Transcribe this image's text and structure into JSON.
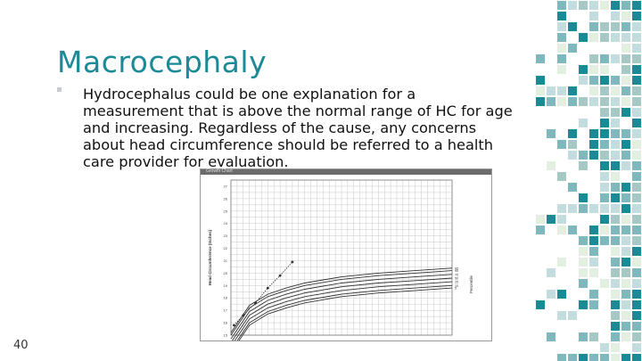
{
  "slide": {
    "title": "Macrocephaly",
    "body": "Hydrocephalus could be one explanation for a measurement that is above the normal range of HC for age and increasing. Regardless of the cause, any concerns about head circumference should be referred to a health care provider for evaluation.",
    "page_number": "40"
  },
  "chart_data": {
    "type": "line",
    "title": "",
    "window_title": "Growth Chart",
    "ylabel": "Head Circumference (Inches)",
    "right_label": "Percentile",
    "yticks": [
      "15",
      "16",
      "17",
      "18",
      "19",
      "20",
      "21",
      "22",
      "23",
      "24",
      "25",
      "26",
      "27"
    ],
    "ylim": [
      15,
      27.5
    ],
    "xlim": [
      0,
      36
    ],
    "percentile_labels": [
      "95",
      "90",
      "75",
      "50",
      "25",
      "10",
      "5"
    ],
    "series": [
      {
        "name": "95",
        "x": [
          0,
          3,
          6,
          9,
          12,
          18,
          24,
          30,
          36
        ],
        "y": [
          15.2,
          17.4,
          18.3,
          18.8,
          19.2,
          19.7,
          20.0,
          20.2,
          20.4
        ]
      },
      {
        "name": "90",
        "x": [
          0,
          3,
          6,
          9,
          12,
          18,
          24,
          30,
          36
        ],
        "y": [
          15.0,
          17.2,
          18.1,
          18.6,
          19.0,
          19.5,
          19.8,
          20.0,
          20.2
        ]
      },
      {
        "name": "75",
        "x": [
          0,
          3,
          6,
          9,
          12,
          18,
          24,
          30,
          36
        ],
        "y": [
          14.7,
          16.9,
          17.8,
          18.3,
          18.7,
          19.2,
          19.5,
          19.7,
          19.9
        ]
      },
      {
        "name": "50",
        "x": [
          0,
          3,
          6,
          9,
          12,
          18,
          24,
          30,
          36
        ],
        "y": [
          14.4,
          16.6,
          17.5,
          18.0,
          18.4,
          18.9,
          19.2,
          19.4,
          19.6
        ]
      },
      {
        "name": "25",
        "x": [
          0,
          3,
          6,
          9,
          12,
          18,
          24,
          30,
          36
        ],
        "y": [
          14.1,
          16.3,
          17.2,
          17.7,
          18.1,
          18.6,
          18.9,
          19.1,
          19.3
        ]
      },
      {
        "name": "10",
        "x": [
          0,
          3,
          6,
          9,
          12,
          18,
          24,
          30,
          36
        ],
        "y": [
          13.8,
          16.0,
          16.9,
          17.4,
          17.8,
          18.3,
          18.6,
          18.8,
          19.0
        ]
      },
      {
        "name": "5",
        "x": [
          0,
          3,
          6,
          9,
          12,
          18,
          24,
          30,
          36
        ],
        "y": [
          13.6,
          15.8,
          16.7,
          17.2,
          17.6,
          18.1,
          18.4,
          18.6,
          18.8
        ]
      }
    ],
    "patient": {
      "x": [
        0.5,
        2,
        4,
        6,
        8,
        10
      ],
      "y": [
        15.8,
        16.6,
        17.6,
        18.8,
        19.8,
        20.9
      ]
    },
    "colors": {
      "curve": "#333333",
      "patient": "#333333",
      "grid": "#c8c8c8"
    }
  },
  "colors": {
    "title": "#1a8a96",
    "mosaic": [
      "#1a8a96",
      "#7fb8bd",
      "#c3dcde",
      "#e3efe0",
      "#a7c9c6"
    ]
  }
}
